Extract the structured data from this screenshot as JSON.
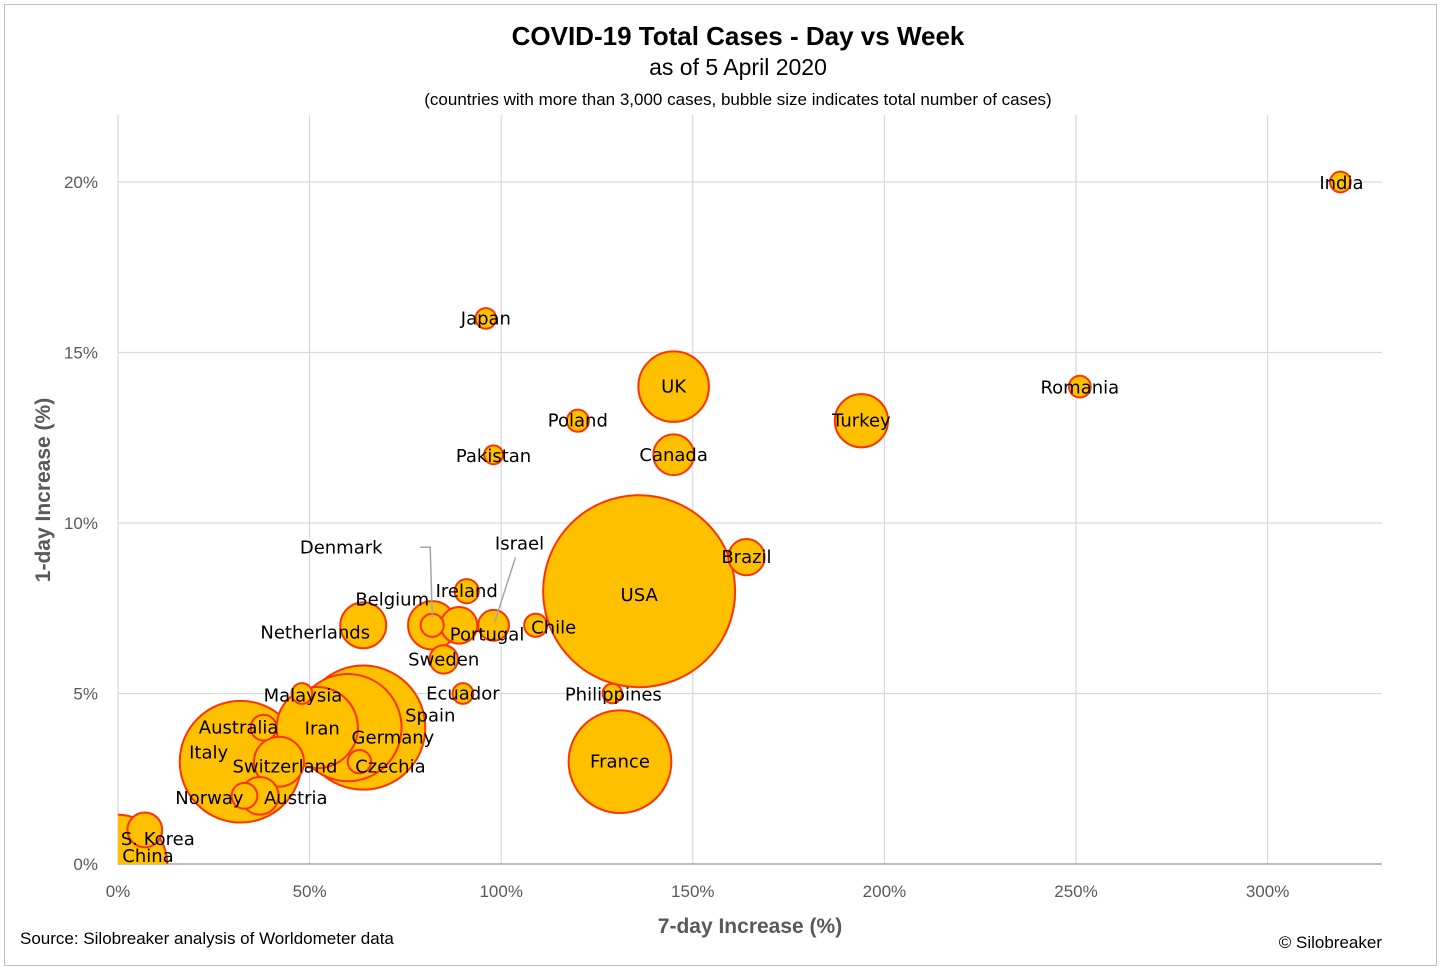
{
  "chart_data": {
    "type": "scatter",
    "title": "COVID-19 Total Cases - Day vs Week",
    "subtitle": "as of 5 April 2020",
    "note": "(countries with more than 3,000 cases, bubble size indicates total number of cases)",
    "xlabel": "7-day Increase (%)",
    "ylabel": "1-day Increase (%)",
    "xlim": [
      0,
      330
    ],
    "ylim": [
      0,
      22
    ],
    "x_ticks": [
      {
        "value": 0,
        "label": "0%"
      },
      {
        "value": 50,
        "label": "50%"
      },
      {
        "value": 100,
        "label": "100%"
      },
      {
        "value": 150,
        "label": "150%"
      },
      {
        "value": 200,
        "label": "200%"
      },
      {
        "value": 250,
        "label": "250%"
      },
      {
        "value": 300,
        "label": "300%"
      }
    ],
    "y_ticks": [
      {
        "value": 0,
        "label": "0%"
      },
      {
        "value": 5,
        "label": "5%"
      },
      {
        "value": 10,
        "label": "10%"
      },
      {
        "value": 15,
        "label": "15%"
      },
      {
        "value": 20,
        "label": "20%"
      }
    ],
    "grid": true,
    "bubble_fill": "#ffc000",
    "bubble_stroke": "#ff3300",
    "points": [
      {
        "name": "USA",
        "x": 136,
        "y": 8.0,
        "size": 311000
      },
      {
        "name": "Spain",
        "x": 64,
        "y": 4.0,
        "size": 130000
      },
      {
        "name": "Italy",
        "x": 32,
        "y": 3.0,
        "size": 125000
      },
      {
        "name": "Germany",
        "x": 60,
        "y": 4.0,
        "size": 97000
      },
      {
        "name": "France",
        "x": 131,
        "y": 3.0,
        "size": 89000
      },
      {
        "name": "China",
        "x": 0,
        "y": 0.0,
        "size": 81700
      },
      {
        "name": "Iran",
        "x": 52,
        "y": 4.0,
        "size": 55700
      },
      {
        "name": "UK",
        "x": 145,
        "y": 14.0,
        "size": 42000
      },
      {
        "name": "Turkey",
        "x": 194,
        "y": 13.0,
        "size": 23900
      },
      {
        "name": "Switzerland",
        "x": 42,
        "y": 3.0,
        "size": 21000
      },
      {
        "name": "Belgium",
        "x": 82,
        "y": 7.0,
        "size": 19700
      },
      {
        "name": "Netherlands",
        "x": 64,
        "y": 7.0,
        "size": 17800
      },
      {
        "name": "Canada",
        "x": 145,
        "y": 12.0,
        "size": 14000
      },
      {
        "name": "Austria",
        "x": 37,
        "y": 2.0,
        "size": 12000
      },
      {
        "name": "Portugal",
        "x": 89,
        "y": 7.0,
        "size": 11300
      },
      {
        "name": "Brazil",
        "x": 164,
        "y": 9.0,
        "size": 11100
      },
      {
        "name": "S. Korea",
        "x": 7,
        "y": 1.0,
        "size": 10200
      },
      {
        "name": "Israel",
        "x": 98,
        "y": 7.0,
        "size": 8000
      },
      {
        "name": "Sweden",
        "x": 85,
        "y": 6.0,
        "size": 6800
      },
      {
        "name": "Australia",
        "x": 38,
        "y": 4.0,
        "size": 5600
      },
      {
        "name": "Norway",
        "x": 33,
        "y": 2.0,
        "size": 5600
      },
      {
        "name": "Ireland",
        "x": 91,
        "y": 8.0,
        "size": 4900
      },
      {
        "name": "Chile",
        "x": 109,
        "y": 7.0,
        "size": 4500
      },
      {
        "name": "Czechia",
        "x": 63,
        "y": 3.0,
        "size": 4600
      },
      {
        "name": "Denmark",
        "x": 82,
        "y": 7.0,
        "size": 4500
      },
      {
        "name": "Poland",
        "x": 120,
        "y": 13.0,
        "size": 4100
      },
      {
        "name": "Romania",
        "x": 251,
        "y": 14.0,
        "size": 4000
      },
      {
        "name": "Japan",
        "x": 96,
        "y": 16.0,
        "size": 3600
      },
      {
        "name": "Malaysia",
        "x": 48,
        "y": 5.0,
        "size": 3600
      },
      {
        "name": "Ecuador",
        "x": 90,
        "y": 5.0,
        "size": 3600
      },
      {
        "name": "Philippines",
        "x": 129,
        "y": 5.0,
        "size": 3200
      },
      {
        "name": "India",
        "x": 319,
        "y": 20.0,
        "size": 3600
      },
      {
        "name": "Pakistan",
        "x": 98,
        "y": 12.0,
        "size": 3000
      }
    ]
  },
  "footer": {
    "source": "Source: Silobreaker analysis of Worldometer data",
    "copyright": "© Silobreaker"
  }
}
